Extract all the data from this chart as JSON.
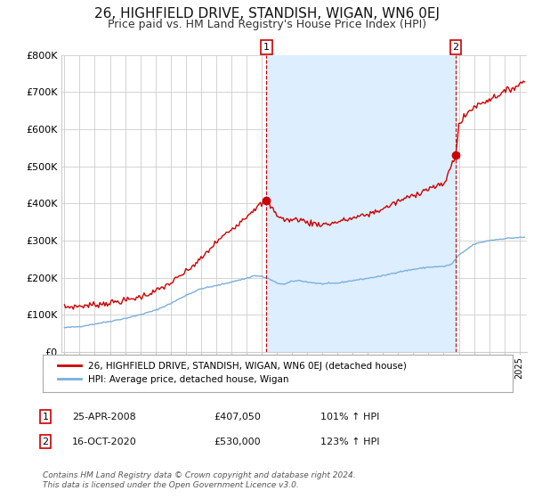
{
  "title": "26, HIGHFIELD DRIVE, STANDISH, WIGAN, WN6 0EJ",
  "subtitle": "Price paid vs. HM Land Registry's House Price Index (HPI)",
  "ylim": [
    0,
    800000
  ],
  "yticks": [
    0,
    100000,
    200000,
    300000,
    400000,
    500000,
    600000,
    700000,
    800000
  ],
  "ytick_labels": [
    "£0",
    "£100K",
    "£200K",
    "£300K",
    "£400K",
    "£500K",
    "£600K",
    "£700K",
    "£800K"
  ],
  "xlim_start": 1994.8,
  "xlim_end": 2025.5,
  "title_fontsize": 11,
  "subtitle_fontsize": 9,
  "sale1_x": 2008.32,
  "sale1_y": 407050,
  "sale2_x": 2020.79,
  "sale2_y": 530000,
  "legend_label_red": "26, HIGHFIELD DRIVE, STANDISH, WIGAN, WN6 0EJ (detached house)",
  "legend_label_blue": "HPI: Average price, detached house, Wigan",
  "annotation1_date": "25-APR-2008",
  "annotation1_price": "£407,050",
  "annotation1_hpi": "101% ↑ HPI",
  "annotation2_date": "16-OCT-2020",
  "annotation2_price": "£530,000",
  "annotation2_hpi": "123% ↑ HPI",
  "footer": "Contains HM Land Registry data © Crown copyright and database right 2024.\nThis data is licensed under the Open Government Licence v3.0.",
  "red_color": "#cc0000",
  "blue_color": "#7aafdb",
  "shade_color": "#ddeeff",
  "bg_color": "#ffffff",
  "grid_color": "#cccccc"
}
